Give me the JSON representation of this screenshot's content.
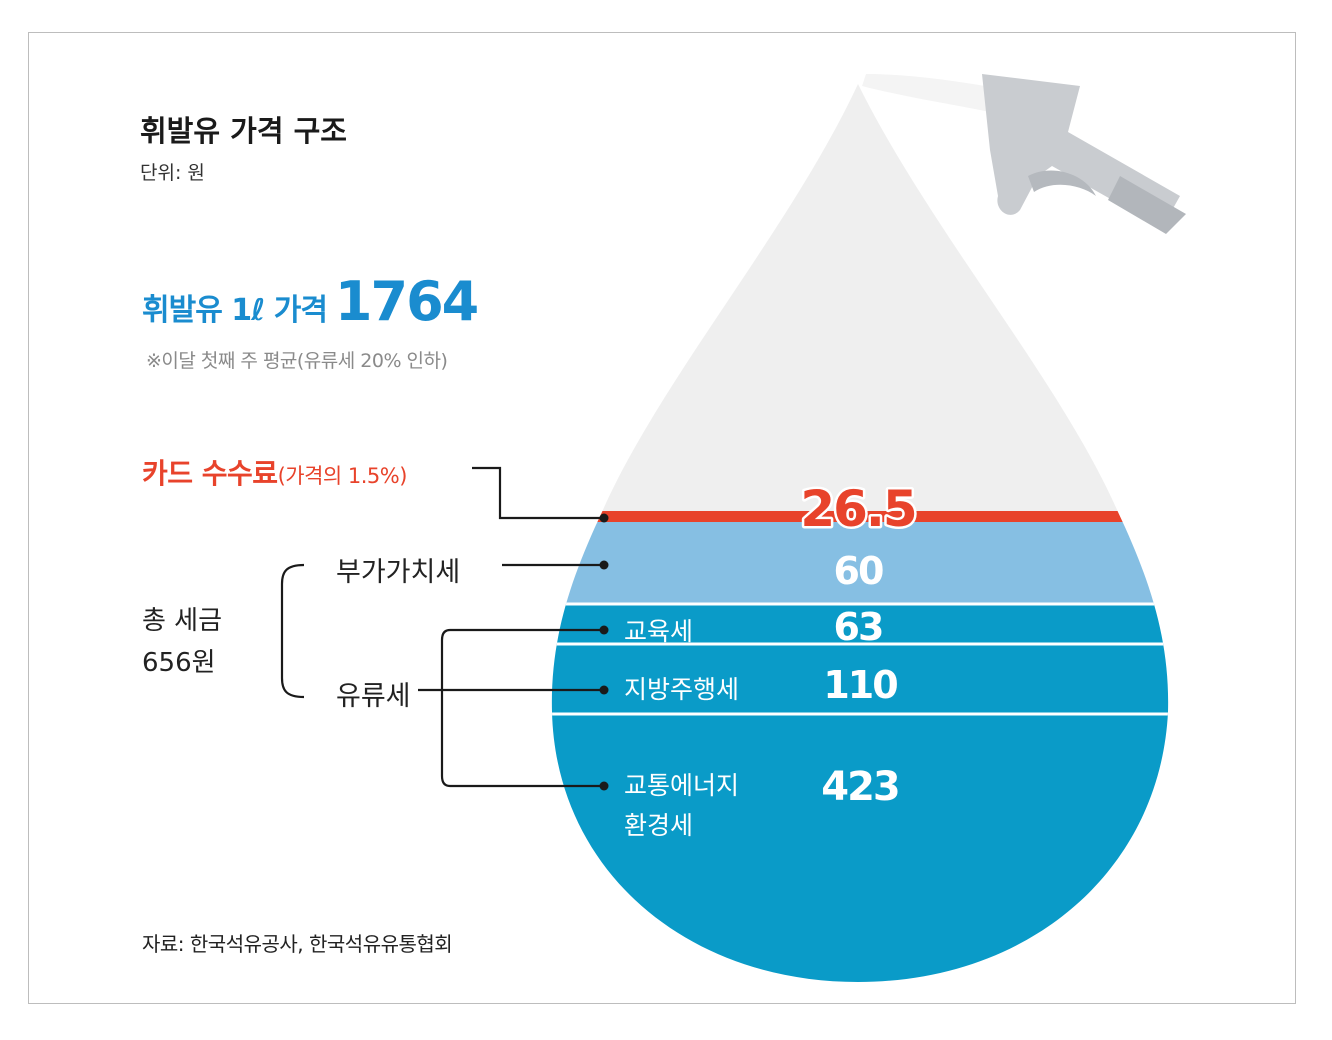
{
  "title": "휘발유 가격 구조",
  "unit": "단위: 원",
  "headline": {
    "label": "휘발유 1ℓ 가격",
    "value": "1764"
  },
  "note": "※이달 첫째 주 평균(유류세 20% 인하)",
  "labels": {
    "card_fee": "카드 수수료",
    "card_fee_note": "(가격의 1.5%)",
    "vat": "부가가치세",
    "total_tax": [
      "총 세금",
      "656원"
    ],
    "fuel_tax": "유류세",
    "education_tax": "교육세",
    "local_tax": "지방주행세",
    "energy_tax": [
      "교통에너지",
      "환경세"
    ]
  },
  "source": "자료: 한국석유공사, 한국석유유통협회",
  "colors": {
    "drop_top": "#efefef",
    "card_fee": "#e8432b",
    "vat": "#86bfe3",
    "fuel_tax": "#0a9bc8",
    "headline": "#1a8ccf",
    "nozzle": "#c9ccd0"
  },
  "icons": [
    "fuel-drop-icon",
    "fuel-nozzle-icon"
  ],
  "chart_data": {
    "type": "bar",
    "stacked": true,
    "total": 1764,
    "categories": [
      "카드 수수료",
      "부가가치세",
      "교육세",
      "지방주행세",
      "교통에너지 환경세"
    ],
    "values": [
      26.5,
      60,
      63,
      110,
      423
    ],
    "value_labels": [
      "26.5",
      "60",
      "63",
      "110",
      "423"
    ]
  }
}
